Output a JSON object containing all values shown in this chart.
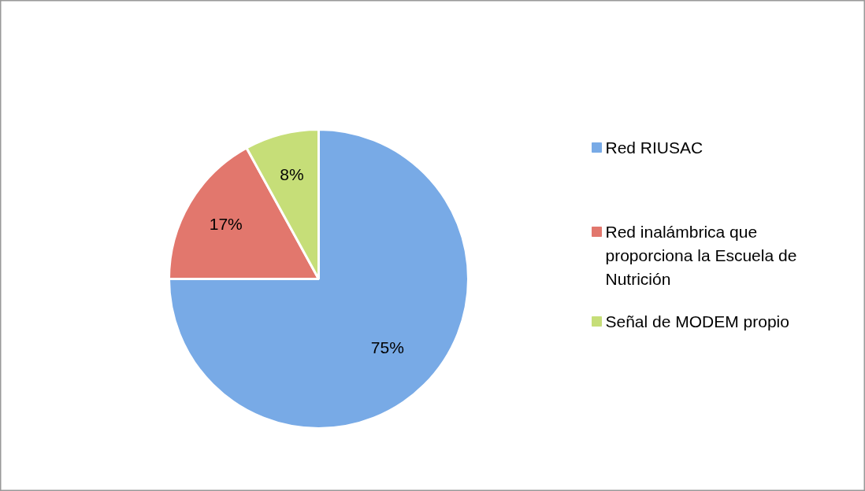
{
  "chart_data": {
    "type": "pie",
    "categories": [
      "Red RIUSAC",
      "Red inalámbrica que proporciona la Escuela de Nutrición",
      "Señal de MODEM propio"
    ],
    "values": [
      75,
      17,
      8
    ],
    "value_labels": [
      "75%",
      "17%",
      "8%"
    ],
    "colors": [
      "#78aae6",
      "#e2776d",
      "#c6de78"
    ],
    "legend": "right"
  }
}
